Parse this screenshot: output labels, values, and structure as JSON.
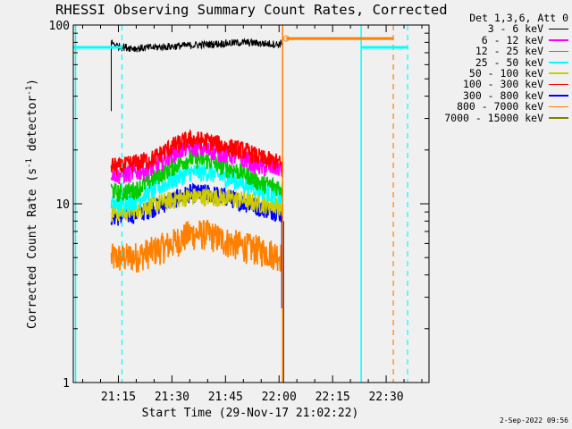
{
  "chart_data": {
    "type": "line",
    "title": "RHESSI Observing Summary Count Rates, Corrected",
    "xlabel": "Start Time (29-Nov-17 21:02:22)",
    "ylabel_main": "Corrected Count Rate (s",
    "ylabel_exp1": "-1",
    "ylabel_mid": " detector",
    "ylabel_exp2": "-1",
    "ylabel_end": ")",
    "y_scale": "log",
    "ylim": [
      1,
      100
    ],
    "yticks": [
      {
        "value": 1,
        "label": "1"
      },
      {
        "value": 10,
        "label": "10"
      },
      {
        "value": 100,
        "label": "100"
      }
    ],
    "xlim": [
      "21:02:22",
      "22:42:00"
    ],
    "xticks": [
      "21:15",
      "21:30",
      "21:45",
      "22:00",
      "22:15",
      "22:30"
    ],
    "legend_header": "Det 1,3,6, Att 0",
    "legend_placement": "right",
    "series": [
      {
        "name": "3 - 6 keV",
        "color": "#000000",
        "x": [
          "21:13",
          "21:15",
          "21:20",
          "21:30",
          "21:40",
          "21:45",
          "21:50",
          "21:55",
          "22:00",
          "22:01"
        ],
        "y": [
          80,
          76,
          74,
          76,
          78,
          79,
          80,
          79,
          78,
          80
        ]
      },
      {
        "name": "6 - 12 keV",
        "color": "#ff00ff",
        "x": [
          "21:13",
          "21:15",
          "21:20",
          "21:25",
          "21:30",
          "21:35",
          "21:40",
          "21:45",
          "21:50",
          "21:55",
          "22:00",
          "22:01"
        ],
        "y": [
          15,
          14.5,
          15,
          16,
          19,
          21,
          20,
          19,
          18,
          16,
          16,
          15
        ]
      },
      {
        "name": "12 - 25 keV",
        "color": "#00cc00",
        "x": [
          "21:13",
          "21:15",
          "21:20",
          "21:25",
          "21:30",
          "21:35",
          "21:40",
          "21:45",
          "21:50",
          "21:55",
          "22:00",
          "22:01"
        ],
        "y": [
          12,
          11.5,
          12,
          14,
          16,
          18,
          17.5,
          16,
          15,
          13,
          12.5,
          12
        ]
      },
      {
        "name": "25 - 50 keV",
        "color": "#00ffff",
        "x": [
          "21:13",
          "21:15",
          "21:20",
          "21:25",
          "21:30",
          "21:35",
          "21:40",
          "21:45",
          "21:50",
          "21:55",
          "22:00",
          "22:01"
        ],
        "y": [
          10,
          10,
          10.5,
          12,
          13.5,
          15,
          15,
          14,
          13,
          12,
          11,
          10.5
        ]
      },
      {
        "name": "50 - 100 keV",
        "color": "#cccc00",
        "x": [
          "21:13",
          "21:15",
          "21:20",
          "21:25",
          "21:30",
          "21:35",
          "21:40",
          "21:45",
          "21:50",
          "21:55",
          "22:00",
          "22:01"
        ],
        "y": [
          9,
          9,
          9.2,
          10,
          10.5,
          11,
          11,
          10.8,
          10.5,
          10,
          9.8,
          9.5
        ]
      },
      {
        "name": "100 - 300 keV",
        "color": "#ff0000",
        "x": [
          "21:13",
          "21:15",
          "21:20",
          "21:25",
          "21:30",
          "21:35",
          "21:40",
          "21:45",
          "21:50",
          "21:55",
          "22:00",
          "22:01"
        ],
        "y": [
          16.5,
          16,
          17,
          18,
          21,
          23,
          22.5,
          21,
          20,
          18,
          17,
          16
        ]
      },
      {
        "name": "300 - 800 keV",
        "color": "#0000ff",
        "x": [
          "21:13",
          "21:15",
          "21:20",
          "21:25",
          "21:30",
          "21:35",
          "21:40",
          "21:45",
          "21:50",
          "21:55",
          "22:00",
          "22:01"
        ],
        "y": [
          8.5,
          8.5,
          8.8,
          9.5,
          10.5,
          11.5,
          11.5,
          11,
          10.2,
          9.5,
          9,
          8.5
        ]
      },
      {
        "name": "800 - 7000 keV",
        "color": "#ff8000",
        "x": [
          "21:13",
          "21:15",
          "21:20",
          "21:25",
          "21:30",
          "21:35",
          "21:40",
          "21:45",
          "21:50",
          "21:55",
          "22:00",
          "22:01"
        ],
        "y": [
          5,
          5,
          5.1,
          5.5,
          6,
          6.8,
          6.8,
          6.2,
          5.8,
          5.5,
          5.2,
          5
        ]
      },
      {
        "name": "7000 - 15000 keV",
        "color": "#808000",
        "x": [],
        "y": []
      }
    ],
    "solid_vertical_lines": [
      {
        "x": "21:03",
        "color": "#00ffff"
      },
      {
        "x": "22:01",
        "color": "#ff8000"
      },
      {
        "x": "22:23",
        "color": "#00ffff"
      }
    ],
    "dashed_vertical_lines": [
      {
        "x": "21:16",
        "color": "#00ffff"
      },
      {
        "x": "22:32",
        "color": "#ff8000"
      },
      {
        "x": "22:36",
        "color": "#00ffff"
      }
    ],
    "horizontal_bars": [
      {
        "color": "#00ffff",
        "x0": "21:02:22",
        "x1": "21:16",
        "y": 75
      },
      {
        "color": "#ff8000",
        "x0": "22:02",
        "x1": "22:32",
        "y": 84
      },
      {
        "color": "#00ffff",
        "x0": "22:23",
        "x1": "22:36",
        "y": 75
      }
    ]
  },
  "timestamp": "2-Sep-2022 09:56"
}
